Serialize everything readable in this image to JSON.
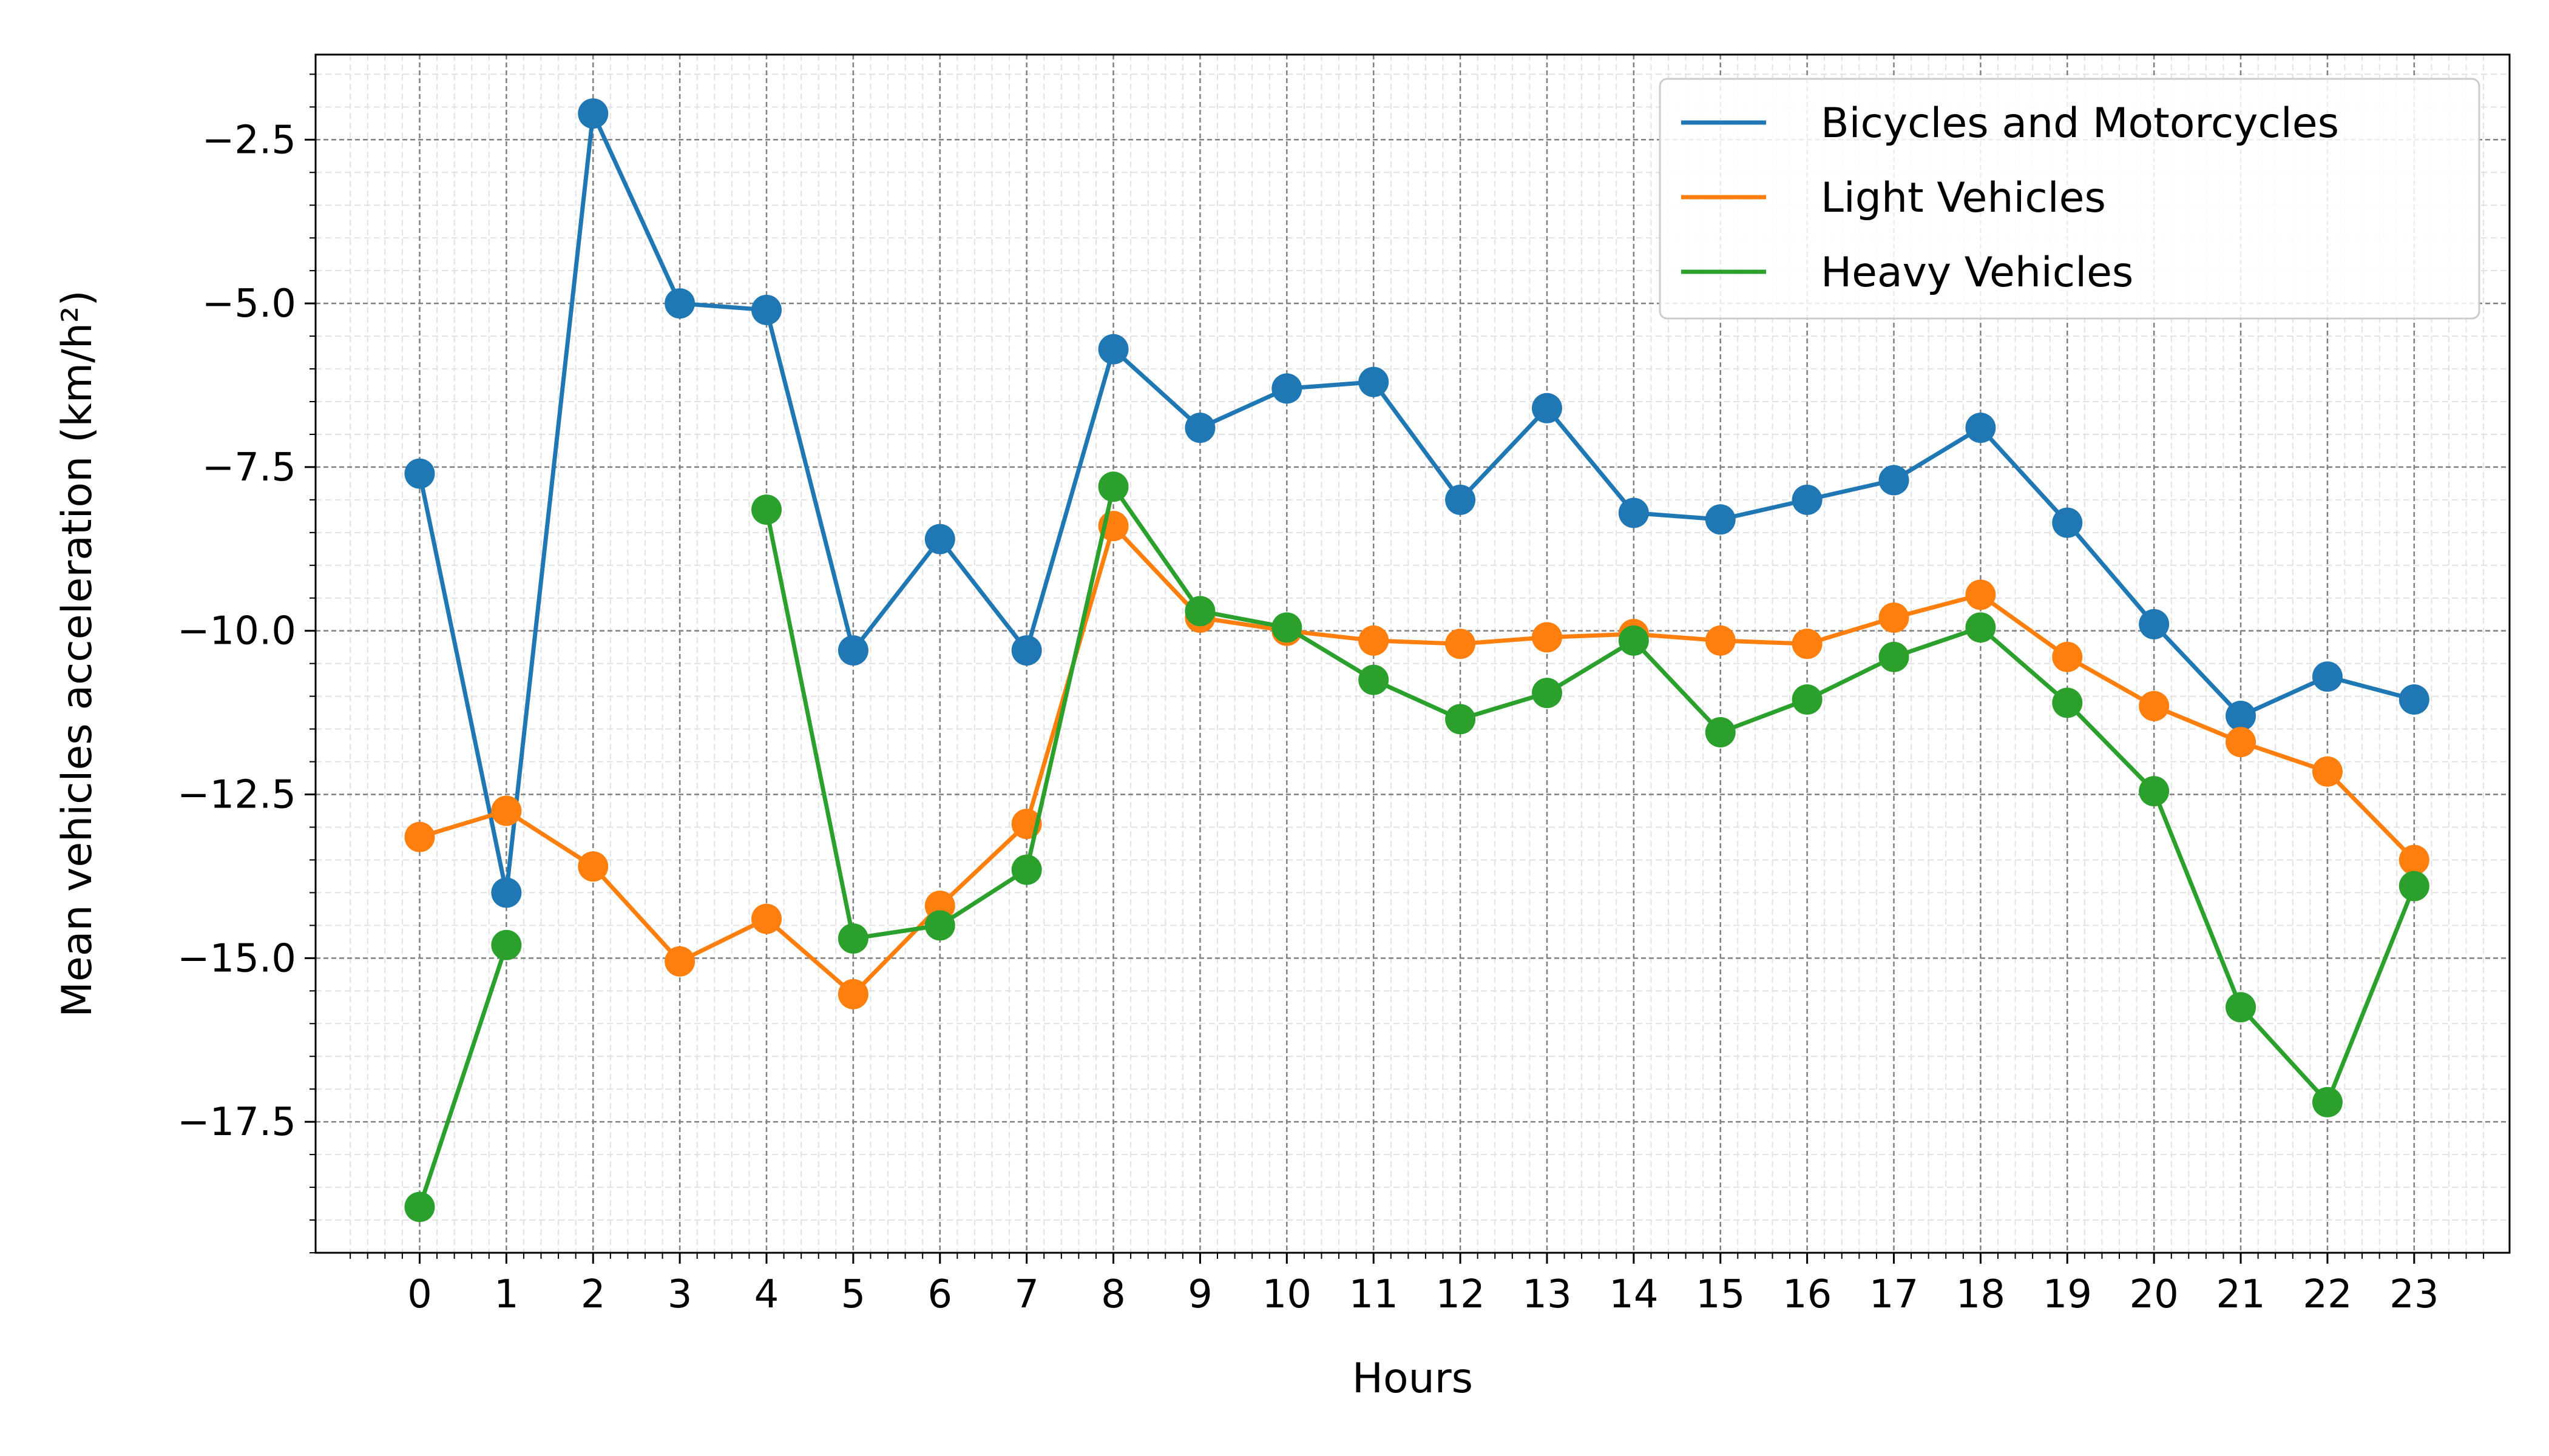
{
  "chart_data": {
    "type": "line",
    "title": "",
    "xlabel": "Hours",
    "ylabel": "Mean vehicles acceleration (km/h²)",
    "x": [
      0,
      1,
      2,
      3,
      4,
      5,
      6,
      7,
      8,
      9,
      10,
      11,
      12,
      13,
      14,
      15,
      16,
      17,
      18,
      19,
      20,
      21,
      22,
      23
    ],
    "x_ticks": [
      "0",
      "1",
      "2",
      "3",
      "4",
      "5",
      "6",
      "7",
      "8",
      "9",
      "10",
      "11",
      "12",
      "13",
      "14",
      "15",
      "16",
      "17",
      "18",
      "19",
      "20",
      "21",
      "22",
      "23"
    ],
    "y_ticks": [
      "−2.5",
      "−5.0",
      "−7.5",
      "−10.0",
      "−12.5",
      "−15.0",
      "−17.5"
    ],
    "y_tick_values": [
      -2.5,
      -5.0,
      -7.5,
      -10.0,
      -12.5,
      -15.0,
      -17.5
    ],
    "xlim": [
      -1.2,
      24.1
    ],
    "ylim": [
      -19.5,
      -1.2
    ],
    "grid": true,
    "legend_position": "top-right",
    "series": [
      {
        "name": "Bicycles and Motorcycles",
        "color": "#1f77b4",
        "values": [
          -7.6,
          -14.0,
          -2.1,
          -5.0,
          -5.1,
          -10.3,
          -8.6,
          -10.3,
          -5.7,
          -6.9,
          -6.3,
          -6.2,
          -8.0,
          -6.6,
          -8.2,
          -8.3,
          -8.0,
          -7.7,
          -6.9,
          -8.35,
          -9.9,
          -11.3,
          -10.7,
          -11.05
        ]
      },
      {
        "name": "Light Vehicles",
        "color": "#ff7f0e",
        "values": [
          -13.15,
          -12.75,
          -13.6,
          -15.05,
          -14.4,
          -15.55,
          -14.2,
          -12.95,
          -8.4,
          -9.8,
          -10.0,
          -10.15,
          -10.2,
          -10.1,
          -10.05,
          -10.15,
          -10.2,
          -9.8,
          -9.45,
          -10.4,
          -11.15,
          -11.7,
          -12.15,
          -13.5
        ]
      },
      {
        "name": "Heavy Vehicles",
        "color": "#2ca02c",
        "values": [
          -18.8,
          -14.8,
          null,
          null,
          -8.15,
          -14.7,
          -14.5,
          -13.65,
          -7.8,
          -9.7,
          -9.95,
          -10.75,
          -11.35,
          -10.95,
          -10.15,
          -11.55,
          -11.05,
          -10.4,
          -9.95,
          -11.1,
          -12.45,
          -15.75,
          -17.2,
          -13.9
        ]
      }
    ]
  }
}
